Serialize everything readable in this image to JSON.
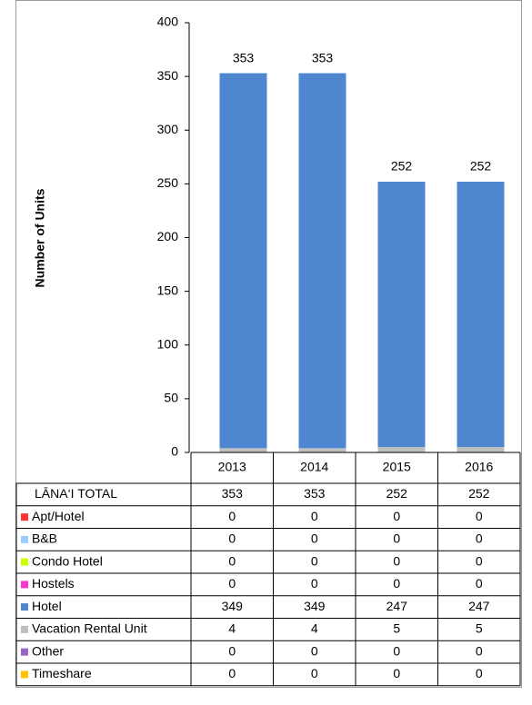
{
  "chart_data": {
    "type": "stacked_bar",
    "y_label": "Number of Units",
    "categories": [
      "2013",
      "2014",
      "2015",
      "2016"
    ],
    "ylim": [
      0,
      400
    ],
    "yticks": [
      0,
      50,
      100,
      150,
      200,
      250,
      300,
      350,
      400
    ],
    "totals": {
      "name": "LĀNA‘I TOTAL",
      "values": [
        353,
        353,
        252,
        252
      ]
    },
    "series": [
      {
        "name": "Apt/Hotel",
        "color": "#ff3333",
        "values": [
          0,
          0,
          0,
          0
        ]
      },
      {
        "name": "B&B",
        "color": "#99ccff",
        "values": [
          0,
          0,
          0,
          0
        ]
      },
      {
        "name": "Condo Hotel",
        "color": "#ccff00",
        "values": [
          0,
          0,
          0,
          0
        ]
      },
      {
        "name": "Hostels",
        "color": "#ff33cc",
        "values": [
          0,
          0,
          0,
          0
        ]
      },
      {
        "name": "Hotel",
        "color": "#4f86d0",
        "values": [
          349,
          349,
          247,
          247
        ]
      },
      {
        "name": "Vacation Rental Unit",
        "color": "#bfbfbf",
        "values": [
          4,
          4,
          5,
          5
        ]
      },
      {
        "name": "Other",
        "color": "#9966cc",
        "values": [
          0,
          0,
          0,
          0
        ]
      },
      {
        "name": "Timeshare",
        "color": "#ffc000",
        "values": [
          0,
          0,
          0,
          0
        ]
      }
    ]
  }
}
